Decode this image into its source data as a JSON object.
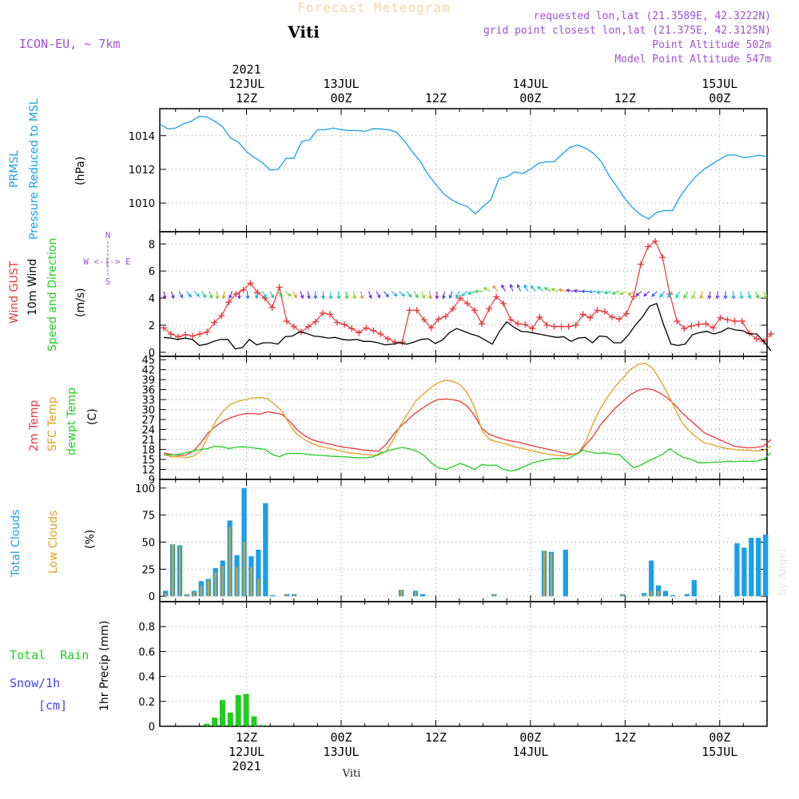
{
  "header": {
    "title": "Forecast Meteogram",
    "location": "Viti",
    "model": "ICON-EU, ~ 7km",
    "requested": "requested lon,lat (21.3589E, 42.3222N)",
    "grid_point": "grid point closest lon,lat (21.375E, 42.3125N)",
    "point_altitude": "Point Altitude 502m",
    "model_altitude": "Model Point Altitude 547m",
    "footer_location": "Viti",
    "watermark": "by Angel"
  },
  "colors": {
    "pressure": "#1a9fe8",
    "gust": "#e8373a",
    "wind": "#000000",
    "t2m": "#e8373a",
    "sfc": "#e0a020",
    "dew": "#22cc22",
    "total_clouds": "#1a9fe8",
    "low_clouds": "#e0a020",
    "rain": "#22cc22",
    "snow": "#4444ee",
    "purple_text": "#a050d0"
  },
  "time_axis": {
    "top_labels": [
      {
        "hour": 12,
        "lines": [
          "2021",
          "12JUL",
          "12Z"
        ]
      },
      {
        "hour": 24,
        "lines": [
          "13JUL",
          "00Z"
        ]
      },
      {
        "hour": 36,
        "lines": [
          "12Z"
        ]
      },
      {
        "hour": 48,
        "lines": [
          "14JUL",
          "00Z"
        ]
      },
      {
        "hour": 60,
        "lines": [
          "12Z"
        ]
      },
      {
        "hour": 72,
        "lines": [
          "15JUL",
          "00Z"
        ]
      }
    ],
    "bottom_labels": [
      {
        "hour": 12,
        "lines": [
          "12Z",
          "12JUL",
          "2021"
        ]
      },
      {
        "hour": 24,
        "lines": [
          "00Z",
          "13JUL"
        ]
      },
      {
        "hour": 36,
        "lines": [
          "12Z"
        ]
      },
      {
        "hour": 48,
        "lines": [
          "00Z",
          "14JUL"
        ]
      },
      {
        "hour": 60,
        "lines": [
          "12Z"
        ]
      },
      {
        "hour": 72,
        "lines": [
          "00Z",
          "15JUL"
        ]
      }
    ],
    "range_hours": [
      1,
      78
    ]
  },
  "panel_labels": {
    "pressure": [
      "PRMSL",
      "Pressure Reduced to MSL",
      "(hPa)"
    ],
    "wind": [
      "Wind GUST",
      "10m Wind",
      "Speed and Direction",
      "(m/s)"
    ],
    "compass": [
      "N",
      "W <-|-> E",
      "S"
    ],
    "temp": [
      "2m Temp",
      "SFC Temp",
      "dewpt Temp",
      "(C)"
    ],
    "clouds": [
      "Total Clouds",
      "Low Clouds",
      "(%)"
    ],
    "precip": [
      "Total  Rain",
      "Snow/1h",
      "[cm]",
      "1hr Precip (mm)"
    ]
  },
  "chart_data": [
    {
      "type": "line",
      "name": "pressure",
      "ylabel": "(hPa)",
      "ylim": [
        1008.3,
        1015.6
      ],
      "yticks": [
        1010,
        1012,
        1014
      ],
      "series": [
        {
          "name": "PRMSL",
          "x": [
            1,
            2,
            3,
            4,
            5,
            6,
            7,
            8,
            9,
            10,
            11,
            12,
            13,
            14,
            15,
            16,
            17,
            18,
            19,
            20,
            21,
            22,
            23,
            24,
            25,
            26,
            27,
            28,
            29,
            30,
            31,
            32,
            33,
            34,
            35,
            36,
            37,
            38,
            39,
            40,
            41,
            42,
            43,
            44,
            45,
            46,
            47,
            48,
            49,
            50,
            51,
            52,
            53,
            54,
            55,
            56,
            57,
            58,
            59,
            60,
            61,
            62,
            63,
            64,
            65,
            66,
            67,
            68,
            69,
            70,
            71,
            72,
            73,
            74,
            75,
            76,
            77,
            78
          ],
          "values": [
            1014.7,
            1014.4,
            1014.45,
            1014.7,
            1014.85,
            1015.15,
            1015.1,
            1014.85,
            1014.5,
            1013.85,
            1013.6,
            1013.05,
            1012.7,
            1012.4,
            1011.95,
            1012.0,
            1012.65,
            1012.65,
            1013.65,
            1013.75,
            1014.35,
            1014.35,
            1014.45,
            1014.35,
            1014.3,
            1014.3,
            1014.25,
            1014.4,
            1014.4,
            1014.35,
            1014.2,
            1013.7,
            1013.05,
            1012.5,
            1011.7,
            1011.1,
            1010.55,
            1010.2,
            1009.95,
            1009.8,
            1009.35,
            1009.8,
            1010.2,
            1011.45,
            1011.55,
            1011.85,
            1011.75,
            1012.0,
            1012.35,
            1012.45,
            1012.45,
            1012.9,
            1013.3,
            1013.45,
            1013.25,
            1012.95,
            1012.45,
            1011.6,
            1010.95,
            1010.25,
            1009.7,
            1009.3,
            1009.05,
            1009.45,
            1009.55,
            1009.55,
            1010.4,
            1011.05,
            1011.6,
            1012.0,
            1012.3,
            1012.6,
            1012.85,
            1012.85,
            1012.7,
            1012.75,
            1012.85,
            1012.75
          ]
        }
      ]
    },
    {
      "type": "line",
      "name": "wind",
      "ylabel": "(m/s)",
      "ylim": [
        -0.3,
        8.9
      ],
      "yticks": [
        0,
        2,
        4,
        6,
        8
      ],
      "series": [
        {
          "name": "Wind GUST",
          "values": [
            1.8,
            1.35,
            1.15,
            1.3,
            1.2,
            1.35,
            1.5,
            2.2,
            2.7,
            3.7,
            4.3,
            4.6,
            5.1,
            4.4,
            4.0,
            3.3,
            4.8,
            2.3,
            1.9,
            1.5,
            1.9,
            2.25,
            2.9,
            2.8,
            2.2,
            2.05,
            1.75,
            1.45,
            1.8,
            1.6,
            1.35,
            1.0,
            0.75,
            0.75,
            3.1,
            3.1,
            2.4,
            1.8,
            2.45,
            2.65,
            3.2,
            4.0,
            3.6,
            3.1,
            2.1,
            3.2,
            4.1,
            3.6,
            2.4,
            2.1,
            2.05,
            1.75,
            2.6,
            2.0,
            1.9,
            1.9,
            1.9,
            2.0,
            2.8,
            2.55,
            3.1,
            3.0,
            2.6,
            2.45,
            2.85,
            4.1,
            6.5,
            7.8,
            8.2,
            7.0,
            4.3,
            2.3,
            1.75,
            1.95,
            2.05,
            2.1,
            1.8,
            2.55,
            2.4,
            2.3,
            2.3,
            1.4,
            1.0,
            0.8,
            1.35
          ]
        },
        {
          "name": "10m Wind",
          "values": [
            1.1,
            1.05,
            0.95,
            1.05,
            0.95,
            0.5,
            0.6,
            0.8,
            0.95,
            0.95,
            0.25,
            0.35,
            0.95,
            0.55,
            0.7,
            0.7,
            0.6,
            1.15,
            1.2,
            1.5,
            1.4,
            1.2,
            1.15,
            1.05,
            1.1,
            0.95,
            0.9,
            0.95,
            0.8,
            0.8,
            0.7,
            0.55,
            0.6,
            0.7,
            0.6,
            0.75,
            0.95,
            1.0,
            0.65,
            0.9,
            1.45,
            1.75,
            1.55,
            1.35,
            1.2,
            0.9,
            0.6,
            1.55,
            2.25,
            1.85,
            1.55,
            1.5,
            1.4,
            1.3,
            1.2,
            1.1,
            1.15,
            0.8,
            1.05,
            1.1,
            0.7,
            1.2,
            1.15,
            0.7,
            0.7,
            1.25,
            2.0,
            2.6,
            3.4,
            3.6,
            2.0,
            0.6,
            0.5,
            0.6,
            1.3,
            1.45,
            1.55,
            1.35,
            1.5,
            1.8,
            1.65,
            1.6,
            1.35,
            1.35,
            0.8,
            0.1
          ]
        }
      ],
      "arrows_y": 4.5,
      "arrow_dirs_deg": [
        170,
        160,
        150,
        140,
        135,
        145,
        160,
        175,
        190,
        200,
        185,
        175,
        160,
        150,
        150,
        140,
        130,
        150,
        160,
        170,
        180,
        180,
        180,
        175,
        170,
        170,
        170,
        160,
        150,
        140,
        130,
        130,
        140,
        150,
        160,
        170,
        180,
        190,
        200,
        210,
        230,
        250,
        270,
        300,
        320,
        330,
        340,
        335,
        330,
        320,
        310,
        300,
        290,
        285,
        280,
        275,
        270,
        265,
        260,
        255,
        250,
        245,
        240,
        235,
        230,
        225,
        220,
        215,
        210,
        205,
        200,
        195,
        190,
        185,
        180,
        175,
        170,
        165,
        160,
        155
      ],
      "compass": "N W E S"
    },
    {
      "type": "line",
      "name": "temperature",
      "ylabel": "(C)",
      "ylim": [
        9,
        46
      ],
      "yticks": [
        9,
        12,
        15,
        18,
        21,
        24,
        27,
        30,
        33,
        36,
        39,
        42,
        45
      ],
      "series": [
        {
          "name": "2m Temp",
          "values": [
            17.0,
            16.5,
            16.2,
            16.3,
            17.5,
            20.0,
            23.0,
            25.0,
            26.5,
            27.5,
            28.3,
            28.8,
            28.8,
            28.6,
            29.3,
            29.0,
            28.5,
            26.5,
            24.0,
            22.2,
            21.0,
            20.3,
            19.8,
            19.3,
            18.8,
            18.5,
            18.2,
            17.8,
            17.6,
            17.5,
            19.5,
            22.5,
            25.0,
            27.0,
            29.0,
            30.5,
            32.0,
            33.0,
            33.2,
            33.0,
            32.5,
            31.0,
            28.0,
            24.2,
            22.5,
            21.7,
            21.0,
            20.5,
            20.2,
            19.5,
            19.0,
            18.5,
            18.0,
            17.5,
            17.0,
            16.6,
            16.8,
            19.5,
            22.0,
            25.5,
            28.0,
            30.5,
            32.5,
            34.5,
            35.7,
            36.3,
            36.0,
            35.0,
            33.5,
            31.5,
            29.0,
            27.0,
            25.0,
            23.0,
            22.0,
            21.0,
            20.0,
            19.0,
            18.7,
            18.5,
            18.6,
            19.0,
            21.0
          ]
        },
        {
          "name": "SFC Temp",
          "values": [
            16.5,
            15.8,
            15.8,
            15.5,
            16.0,
            17.5,
            22.0,
            26.5,
            29.5,
            31.5,
            32.5,
            33.0,
            33.5,
            33.6,
            33.3,
            31.5,
            29.5,
            25.5,
            22.5,
            21.0,
            19.8,
            19.0,
            18.5,
            18.0,
            17.5,
            17.0,
            16.8,
            16.5,
            16.3,
            16.3,
            17.5,
            21.0,
            25.5,
            29.0,
            32.5,
            34.5,
            36.5,
            38.0,
            38.8,
            38.5,
            37.5,
            35.0,
            30.5,
            23.5,
            21.0,
            20.3,
            19.8,
            19.0,
            18.5,
            18.0,
            17.5,
            17.0,
            16.5,
            16.3,
            16.0,
            16.4,
            17.0,
            20.5,
            26.0,
            30.5,
            34.0,
            37.0,
            39.5,
            42.0,
            43.5,
            44.0,
            42.5,
            39.0,
            35.0,
            30.5,
            26.0,
            23.5,
            21.5,
            20.0,
            19.5,
            18.8,
            18.3,
            18.0,
            17.8,
            17.8,
            17.5,
            17.8,
            19.0
          ]
        },
        {
          "name": "dewpt Temp",
          "values": [
            16.5,
            16.3,
            16.5,
            17.0,
            17.5,
            18.0,
            18.2,
            19.0,
            18.8,
            18.3,
            18.7,
            18.8,
            18.6,
            18.3,
            18.0,
            16.5,
            15.8,
            16.8,
            16.8,
            16.8,
            16.5,
            16.3,
            16.2,
            16.0,
            15.9,
            15.8,
            15.6,
            15.5,
            15.5,
            15.8,
            17.0,
            17.6,
            18.2,
            18.6,
            18.2,
            17.5,
            16.2,
            14.0,
            12.5,
            12.0,
            12.8,
            13.8,
            13.0,
            12.0,
            13.5,
            13.2,
            13.3,
            12.0,
            11.5,
            12.0,
            13.0,
            14.0,
            14.5,
            15.0,
            15.2,
            15.3,
            15.3,
            16.5,
            17.8,
            17.2,
            16.8,
            17.0,
            16.6,
            16.5,
            14.5,
            12.5,
            13.3,
            14.5,
            15.5,
            16.5,
            18.2,
            16.7,
            15.5,
            15.0,
            14.0,
            14.0,
            14.2,
            14.2,
            14.5,
            14.3,
            14.5,
            14.4,
            14.5,
            15.0,
            17.0
          ]
        }
      ]
    },
    {
      "type": "bar",
      "name": "clouds",
      "ylabel": "(%)",
      "ylim": [
        -5,
        108
      ],
      "yticks": [
        0,
        25,
        50,
        75,
        100
      ],
      "series": [
        {
          "name": "Total Clouds",
          "values": [
            5,
            48,
            47,
            2,
            5,
            14,
            16,
            26,
            33,
            70,
            38,
            100,
            37,
            43,
            86,
            1,
            0,
            2,
            2,
            0,
            0,
            0,
            0,
            0,
            0,
            0,
            0,
            0,
            0,
            0,
            0,
            0,
            0,
            6,
            0,
            5,
            2,
            0,
            0,
            0,
            0,
            0,
            0,
            0,
            0,
            0,
            2,
            0,
            0,
            0,
            0,
            0,
            0,
            42,
            41,
            0,
            43,
            0,
            0,
            0,
            0,
            0,
            0,
            0,
            2,
            0,
            0,
            3,
            33,
            10,
            5,
            1,
            0,
            2,
            15,
            0,
            0,
            0,
            0,
            0,
            49,
            45,
            54,
            54,
            57
          ]
        },
        {
          "name": "Low Clouds",
          "values": [
            3,
            48,
            46,
            2,
            4,
            10,
            15,
            22,
            28,
            64,
            27,
            50,
            27,
            16,
            0,
            0,
            0,
            2,
            2,
            0,
            0,
            0,
            0,
            0,
            0,
            0,
            0,
            0,
            0,
            0,
            0,
            0,
            0,
            6,
            0,
            4,
            0,
            0,
            0,
            0,
            0,
            0,
            0,
            0,
            0,
            0,
            2,
            0,
            0,
            0,
            0,
            0,
            0,
            42,
            40,
            0,
            0,
            0,
            0,
            0,
            0,
            0,
            0,
            0,
            2,
            0,
            0,
            2,
            5,
            5,
            0,
            0,
            0,
            0,
            0,
            0,
            0,
            0,
            0,
            0,
            0,
            0,
            0,
            0,
            0
          ]
        }
      ]
    },
    {
      "type": "bar",
      "name": "precipitation",
      "ylabel": "1hr Precip (mm)",
      "ylim": [
        0,
        1.0
      ],
      "yticks": [
        0,
        0.2,
        0.4,
        0.6,
        0.8
      ],
      "series": [
        {
          "name": "Total Rain",
          "x": [
            7,
            8,
            9,
            10,
            11,
            12,
            13,
            14
          ],
          "values": [
            0.02,
            0.07,
            0.21,
            0.11,
            0.25,
            0.26,
            0.08,
            0.01
          ]
        },
        {
          "name": "Snow/1h",
          "x": [],
          "values": []
        }
      ]
    }
  ]
}
